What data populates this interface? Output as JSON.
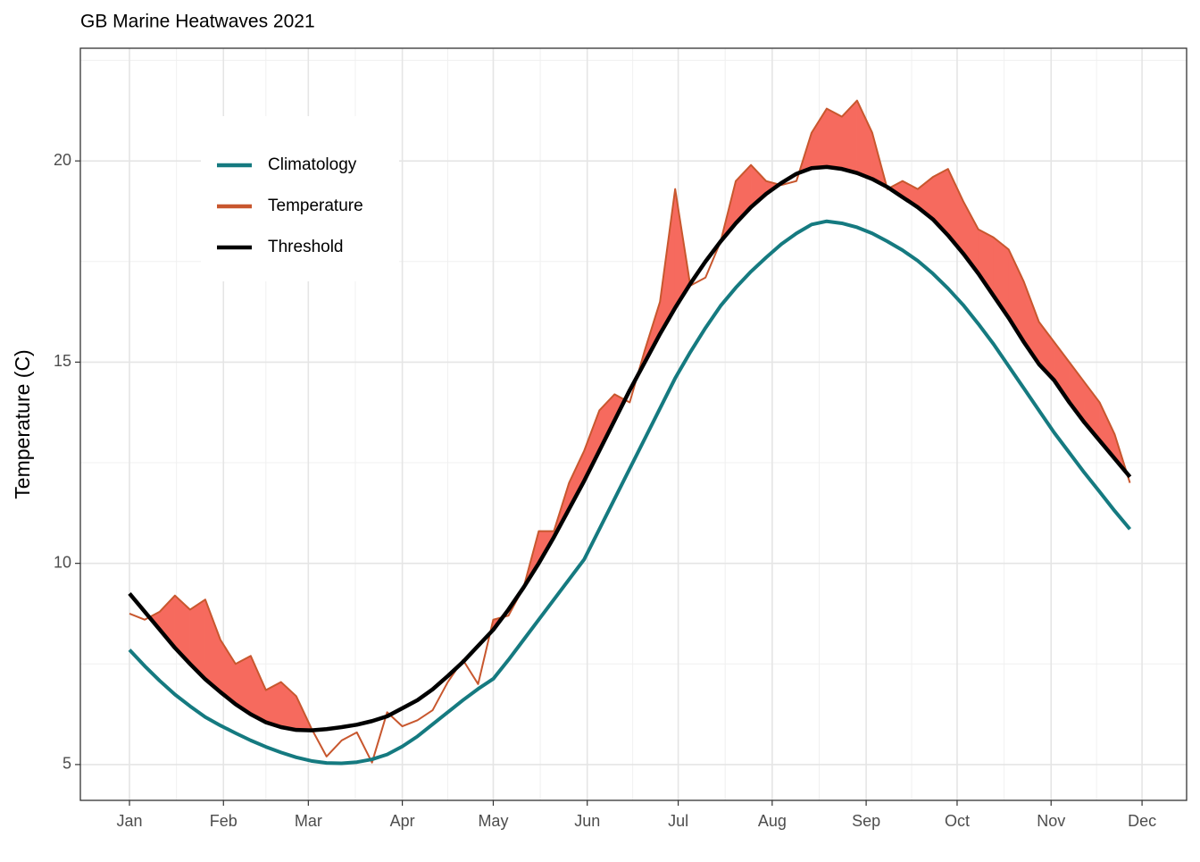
{
  "chart_data": {
    "type": "line",
    "title": "GB Marine Heatwaves 2021",
    "y_label": "Temperature (C)",
    "x": [
      0,
      5,
      10,
      15,
      20,
      25,
      30,
      35,
      40,
      45,
      50,
      55,
      60,
      65,
      70,
      75,
      80,
      85,
      90,
      95,
      100,
      105,
      110,
      115,
      120,
      125,
      130,
      135,
      140,
      145,
      150,
      155,
      160,
      165,
      170,
      175,
      180,
      185,
      190,
      195,
      200,
      205,
      210,
      215,
      220,
      225,
      230,
      235,
      240,
      245,
      250,
      255,
      260,
      265,
      270,
      275,
      280,
      285,
      290,
      295,
      300,
      305,
      310,
      315,
      320,
      325,
      330
    ],
    "series": [
      {
        "name": "Climatology",
        "color": "#157a80",
        "values": [
          7.85,
          7.45,
          7.08,
          6.74,
          6.45,
          6.18,
          5.97,
          5.78,
          5.6,
          5.44,
          5.3,
          5.18,
          5.09,
          5.04,
          5.03,
          5.06,
          5.13,
          5.25,
          5.45,
          5.7,
          6.0,
          6.3,
          6.6,
          6.88,
          7.13,
          7.6,
          8.1,
          8.6,
          9.1,
          9.6,
          10.1,
          10.85,
          11.6,
          12.35,
          13.1,
          13.85,
          14.6,
          15.25,
          15.85,
          16.4,
          16.85,
          17.25,
          17.6,
          17.93,
          18.2,
          18.42,
          18.5,
          18.45,
          18.35,
          18.2,
          18.0,
          17.78,
          17.52,
          17.2,
          16.83,
          16.42,
          15.95,
          15.45,
          14.9,
          14.35,
          13.8,
          13.25,
          12.75,
          12.25,
          11.78,
          11.3,
          10.85
        ]
      },
      {
        "name": "Temperature",
        "color": "#c8572e",
        "values": [
          8.75,
          8.6,
          8.8,
          9.2,
          8.85,
          9.1,
          8.1,
          7.5,
          7.7,
          6.85,
          7.05,
          6.7,
          5.9,
          5.2,
          5.6,
          5.8,
          5.05,
          6.3,
          5.95,
          6.1,
          6.35,
          7.05,
          7.6,
          7.0,
          8.6,
          8.7,
          9.4,
          10.8,
          10.8,
          12.0,
          12.8,
          13.8,
          14.2,
          14.0,
          15.3,
          16.5,
          19.3,
          16.9,
          17.1,
          18.0,
          19.5,
          19.9,
          19.5,
          19.4,
          19.5,
          20.7,
          21.3,
          21.1,
          21.5,
          20.7,
          19.3,
          19.5,
          19.3,
          19.6,
          19.8,
          19.0,
          18.3,
          18.1,
          17.8,
          17.0,
          16.0,
          15.5,
          15.0,
          14.5,
          14.0,
          13.2,
          12.0
        ]
      },
      {
        "name": "Threshold",
        "color": "#000000",
        "values": [
          9.25,
          8.8,
          8.35,
          7.9,
          7.5,
          7.12,
          6.8,
          6.5,
          6.25,
          6.05,
          5.93,
          5.86,
          5.85,
          5.88,
          5.93,
          5.99,
          6.08,
          6.2,
          6.4,
          6.6,
          6.87,
          7.2,
          7.55,
          7.95,
          8.35,
          8.85,
          9.4,
          10.0,
          10.65,
          11.35,
          12.05,
          12.8,
          13.55,
          14.3,
          15.0,
          15.7,
          16.35,
          16.95,
          17.5,
          18.0,
          18.45,
          18.85,
          19.18,
          19.45,
          19.68,
          19.82,
          19.85,
          19.8,
          19.7,
          19.55,
          19.35,
          19.1,
          18.85,
          18.55,
          18.15,
          17.7,
          17.2,
          16.65,
          16.1,
          15.5,
          14.95,
          14.55,
          14.0,
          13.5,
          13.05,
          12.6,
          12.15
        ]
      }
    ],
    "fill_color": "#f66a5e",
    "xlim": [
      -16.2,
      348.7
    ],
    "xticks": [
      {
        "value": 0,
        "label": "Jan"
      },
      {
        "value": 31,
        "label": "Feb"
      },
      {
        "value": 59,
        "label": "Mar"
      },
      {
        "value": 90,
        "label": "Apr"
      },
      {
        "value": 120,
        "label": "May"
      },
      {
        "value": 151,
        "label": "Jun"
      },
      {
        "value": 181,
        "label": "Jul"
      },
      {
        "value": 212,
        "label": "Aug"
      },
      {
        "value": 243,
        "label": "Sep"
      },
      {
        "value": 273,
        "label": "Oct"
      },
      {
        "value": 304,
        "label": "Nov"
      },
      {
        "value": 334,
        "label": "Dec"
      }
    ],
    "ylim": [
      4.11,
      22.8
    ],
    "yticks": [
      5,
      10,
      15,
      20
    ],
    "grid": true,
    "legend": "top-left"
  }
}
